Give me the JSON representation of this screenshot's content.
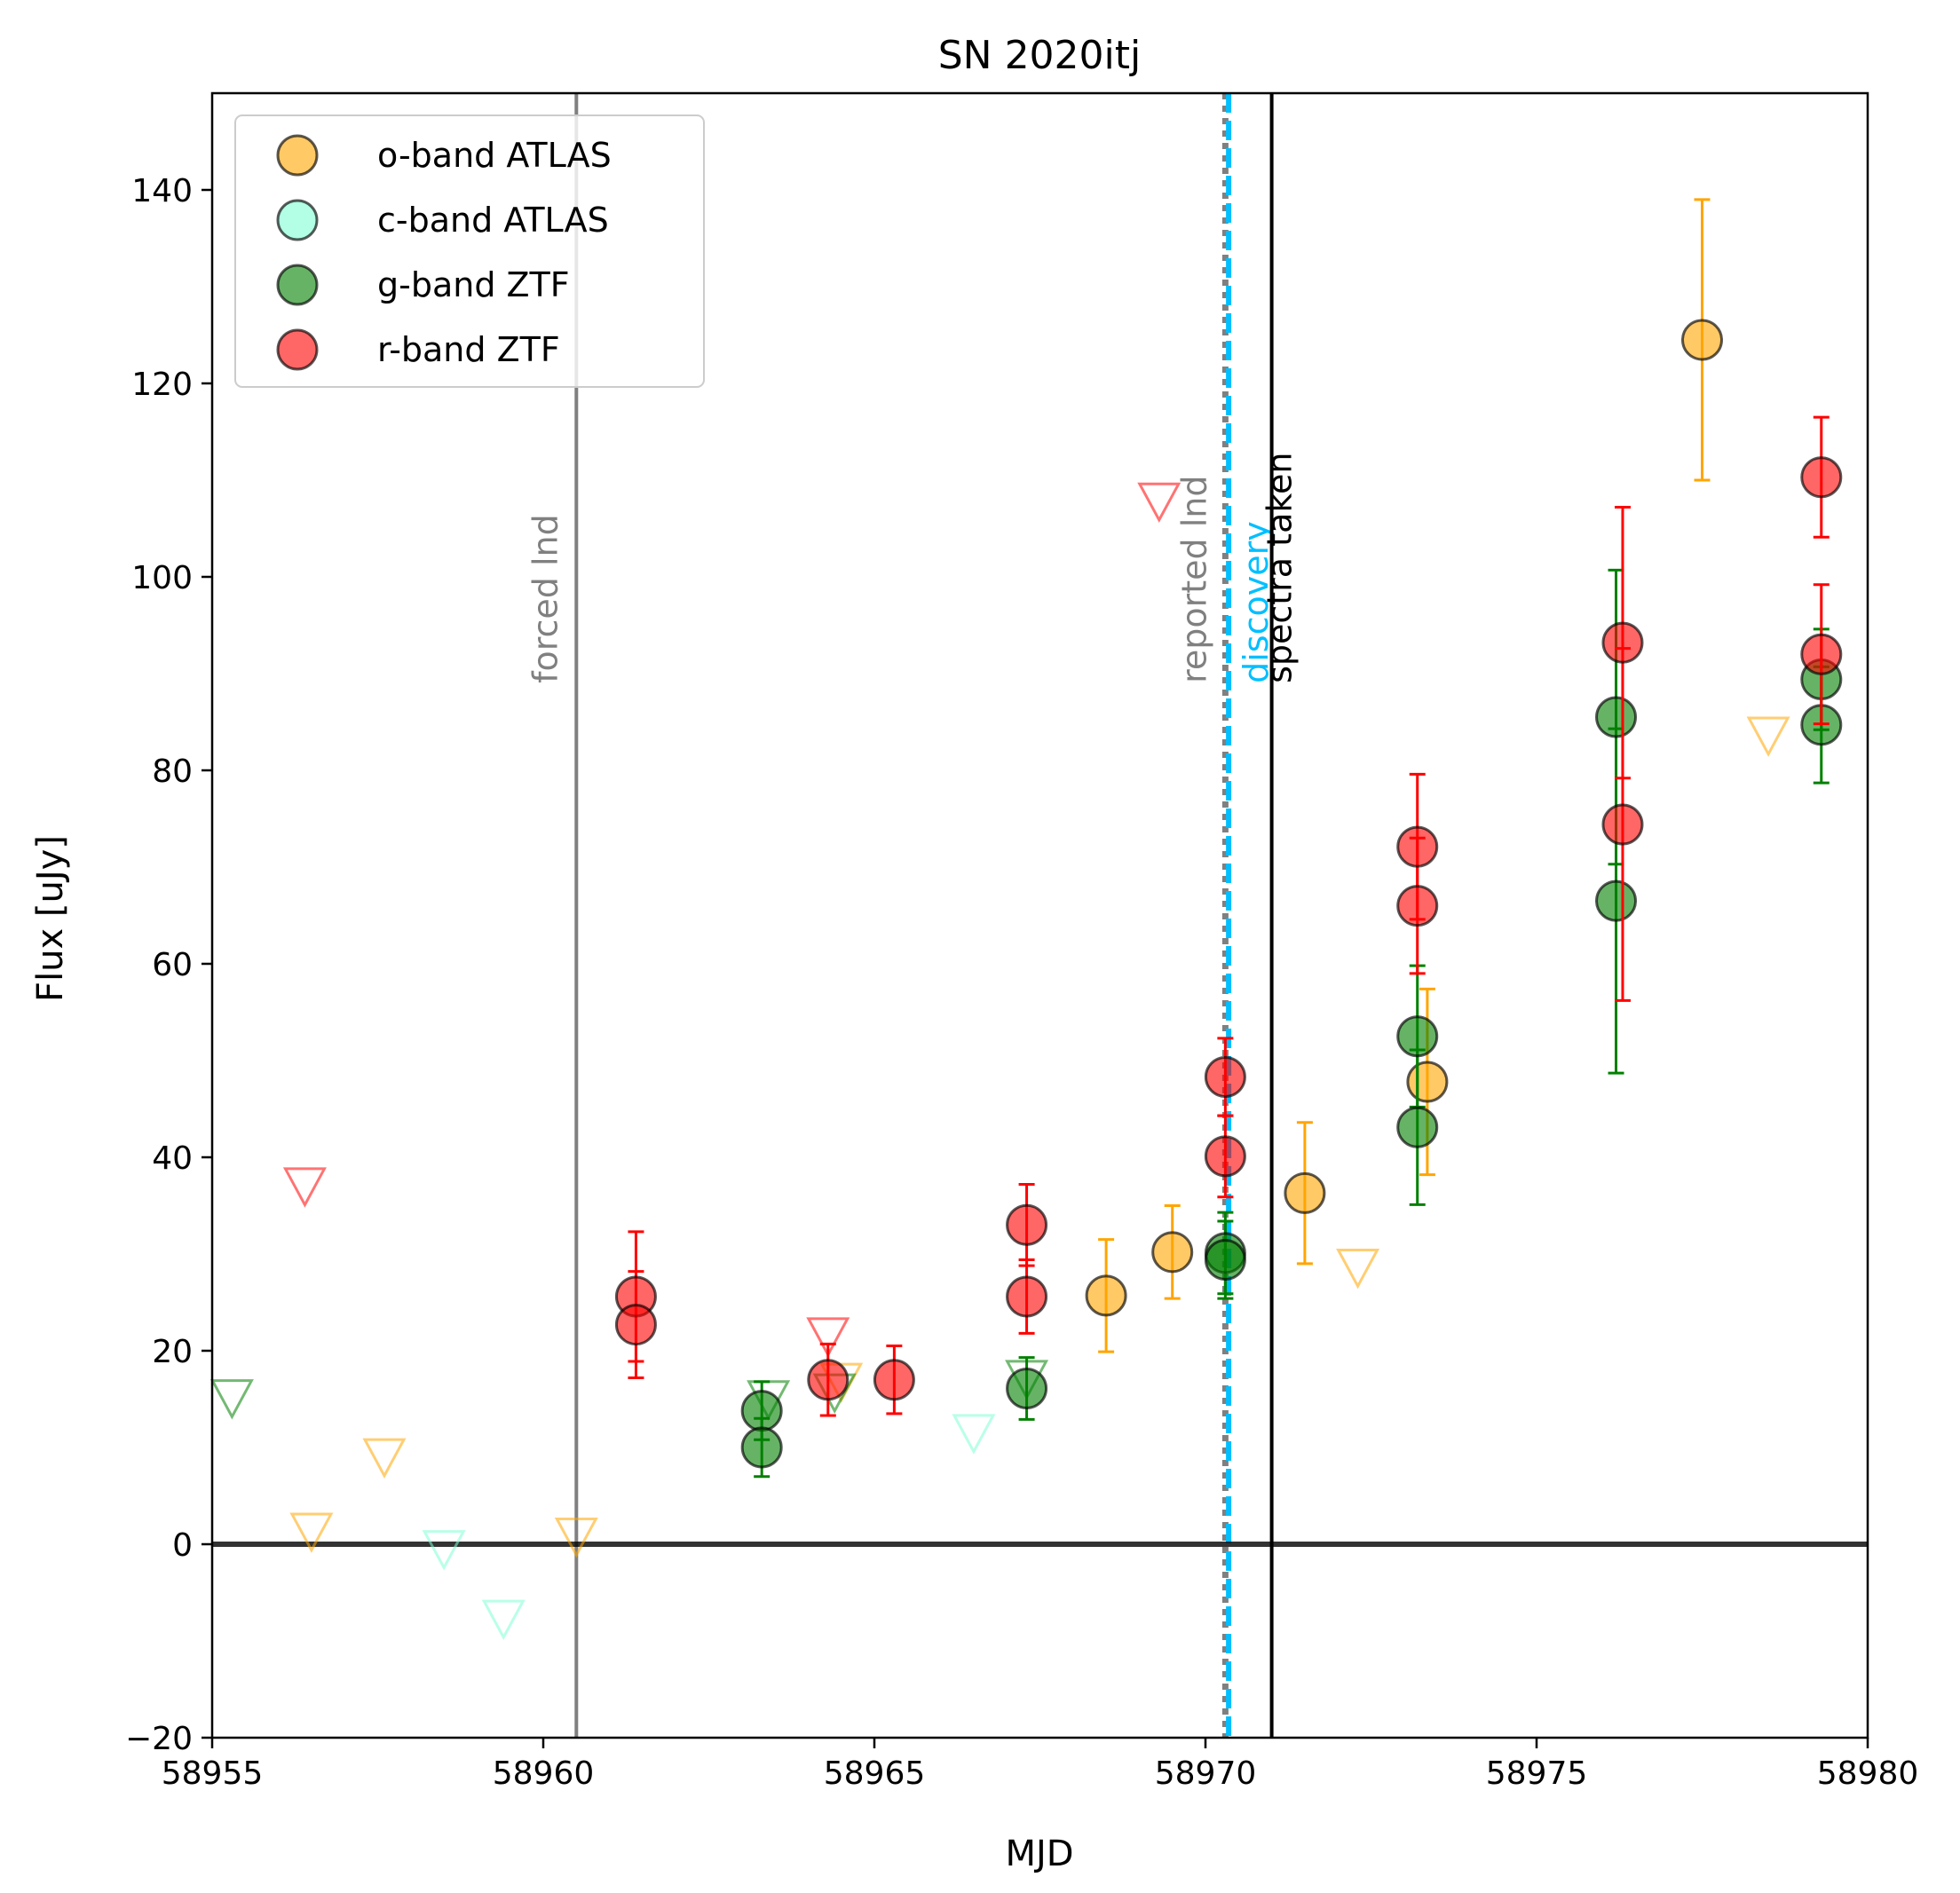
{
  "chart_data": {
    "type": "scatter",
    "title": "SN 2020itj",
    "xlabel": "MJD",
    "ylabel": "Flux [uJy]",
    "xlim": [
      58955,
      58980
    ],
    "ylim": [
      -20,
      150
    ],
    "xticks": [
      58955,
      58960,
      58965,
      58970,
      58975,
      58980
    ],
    "yticks": [
      -20,
      0,
      20,
      40,
      60,
      80,
      100,
      120,
      140
    ],
    "xtick_labels": [
      "58955",
      "58960",
      "58965",
      "58970",
      "58975",
      "58980"
    ],
    "ytick_labels": [
      "−20",
      "0",
      "20",
      "40",
      "60",
      "80",
      "100",
      "120",
      "140"
    ],
    "grid": false,
    "legend_position": "top-left",
    "zero_line": 0,
    "vertical_lines": [
      {
        "x": 58960.5,
        "label": "forced lnd",
        "color": "#808080",
        "style": "solid"
      },
      {
        "x": 58970.3,
        "label": "reported lnd",
        "color": "#808080",
        "style": "dotted"
      },
      {
        "x": 58970.35,
        "label": "discovery",
        "color": "#00bfff",
        "style": "dashed"
      },
      {
        "x": 58971.0,
        "label": "spectra taken",
        "color": "#000000",
        "style": "solid"
      }
    ],
    "series": [
      {
        "name": "o-band ATLAS",
        "color": "#ffa500",
        "detections": [
          {
            "x": 58968.5,
            "y": 25.7,
            "err": 5.8
          },
          {
            "x": 58969.5,
            "y": 30.2,
            "err": 4.8
          },
          {
            "x": 58971.5,
            "y": 36.3,
            "err": 7.3
          },
          {
            "x": 58973.35,
            "y": 47.8,
            "err": 9.6
          },
          {
            "x": 58977.5,
            "y": 124.5,
            "err": 14.5
          }
        ],
        "upper_limits": [
          {
            "x": 58956.5,
            "y": 1.5
          },
          {
            "x": 58957.6,
            "y": 9.2
          },
          {
            "x": 58960.5,
            "y": 1.0
          },
          {
            "x": 58964.5,
            "y": 17.0
          },
          {
            "x": 58972.3,
            "y": 28.8
          },
          {
            "x": 58978.5,
            "y": 83.8
          }
        ]
      },
      {
        "name": "c-band ATLAS",
        "color": "#7fffd4",
        "detections": [],
        "upper_limits": [
          {
            "x": 58958.5,
            "y": -0.3
          },
          {
            "x": 58959.4,
            "y": -7.5
          },
          {
            "x": 58966.5,
            "y": 11.7
          }
        ]
      },
      {
        "name": "g-band ZTF",
        "color": "#008000",
        "detections": [
          {
            "x": 58963.3,
            "y": 13.8,
            "err": 3.0
          },
          {
            "x": 58963.3,
            "y": 10.0,
            "err": 3.0
          },
          {
            "x": 58967.3,
            "y": 16.1,
            "err": 3.2
          },
          {
            "x": 58970.3,
            "y": 30.1,
            "err": 4.2
          },
          {
            "x": 58970.3,
            "y": 29.4,
            "err": 4.0
          },
          {
            "x": 58973.2,
            "y": 52.5,
            "err": 7.3
          },
          {
            "x": 58973.2,
            "y": 43.1,
            "err": 8.0
          },
          {
            "x": 58976.2,
            "y": 85.5,
            "err": 15.2
          },
          {
            "x": 58976.2,
            "y": 66.5,
            "err": 17.8
          },
          {
            "x": 58979.3,
            "y": 89.4,
            "err": 5.2
          },
          {
            "x": 58979.3,
            "y": 84.7,
            "err": 6.0
          }
        ],
        "upper_limits": [
          {
            "x": 58955.3,
            "y": 15.3
          },
          {
            "x": 58963.4,
            "y": 15.2
          },
          {
            "x": 58964.4,
            "y": 15.9
          },
          {
            "x": 58967.3,
            "y": 17.3
          }
        ]
      },
      {
        "name": "r-band ZTF",
        "color": "#ff0000",
        "detections": [
          {
            "x": 58961.4,
            "y": 25.6,
            "err": 6.7
          },
          {
            "x": 58961.4,
            "y": 22.7,
            "err": 5.5
          },
          {
            "x": 58964.3,
            "y": 17.0,
            "err": 3.7
          },
          {
            "x": 58965.3,
            "y": 17.0,
            "err": 3.5
          },
          {
            "x": 58967.3,
            "y": 33.0,
            "err": 4.2
          },
          {
            "x": 58967.3,
            "y": 25.6,
            "err": 3.8
          },
          {
            "x": 58970.3,
            "y": 48.3,
            "err": 4.0
          },
          {
            "x": 58970.3,
            "y": 40.1,
            "err": 4.2
          },
          {
            "x": 58973.2,
            "y": 72.1,
            "err": 7.5
          },
          {
            "x": 58973.2,
            "y": 66.0,
            "err": 7.0
          },
          {
            "x": 58976.3,
            "y": 93.2,
            "err": 14.0
          },
          {
            "x": 58976.3,
            "y": 74.4,
            "err": 18.2
          },
          {
            "x": 58979.3,
            "y": 110.3,
            "err": 6.2
          },
          {
            "x": 58979.3,
            "y": 92.0,
            "err": 7.2
          }
        ],
        "upper_limits": [
          {
            "x": 58956.4,
            "y": 37.2
          },
          {
            "x": 58964.3,
            "y": 21.7
          },
          {
            "x": 58969.3,
            "y": 108.0
          }
        ]
      }
    ]
  }
}
